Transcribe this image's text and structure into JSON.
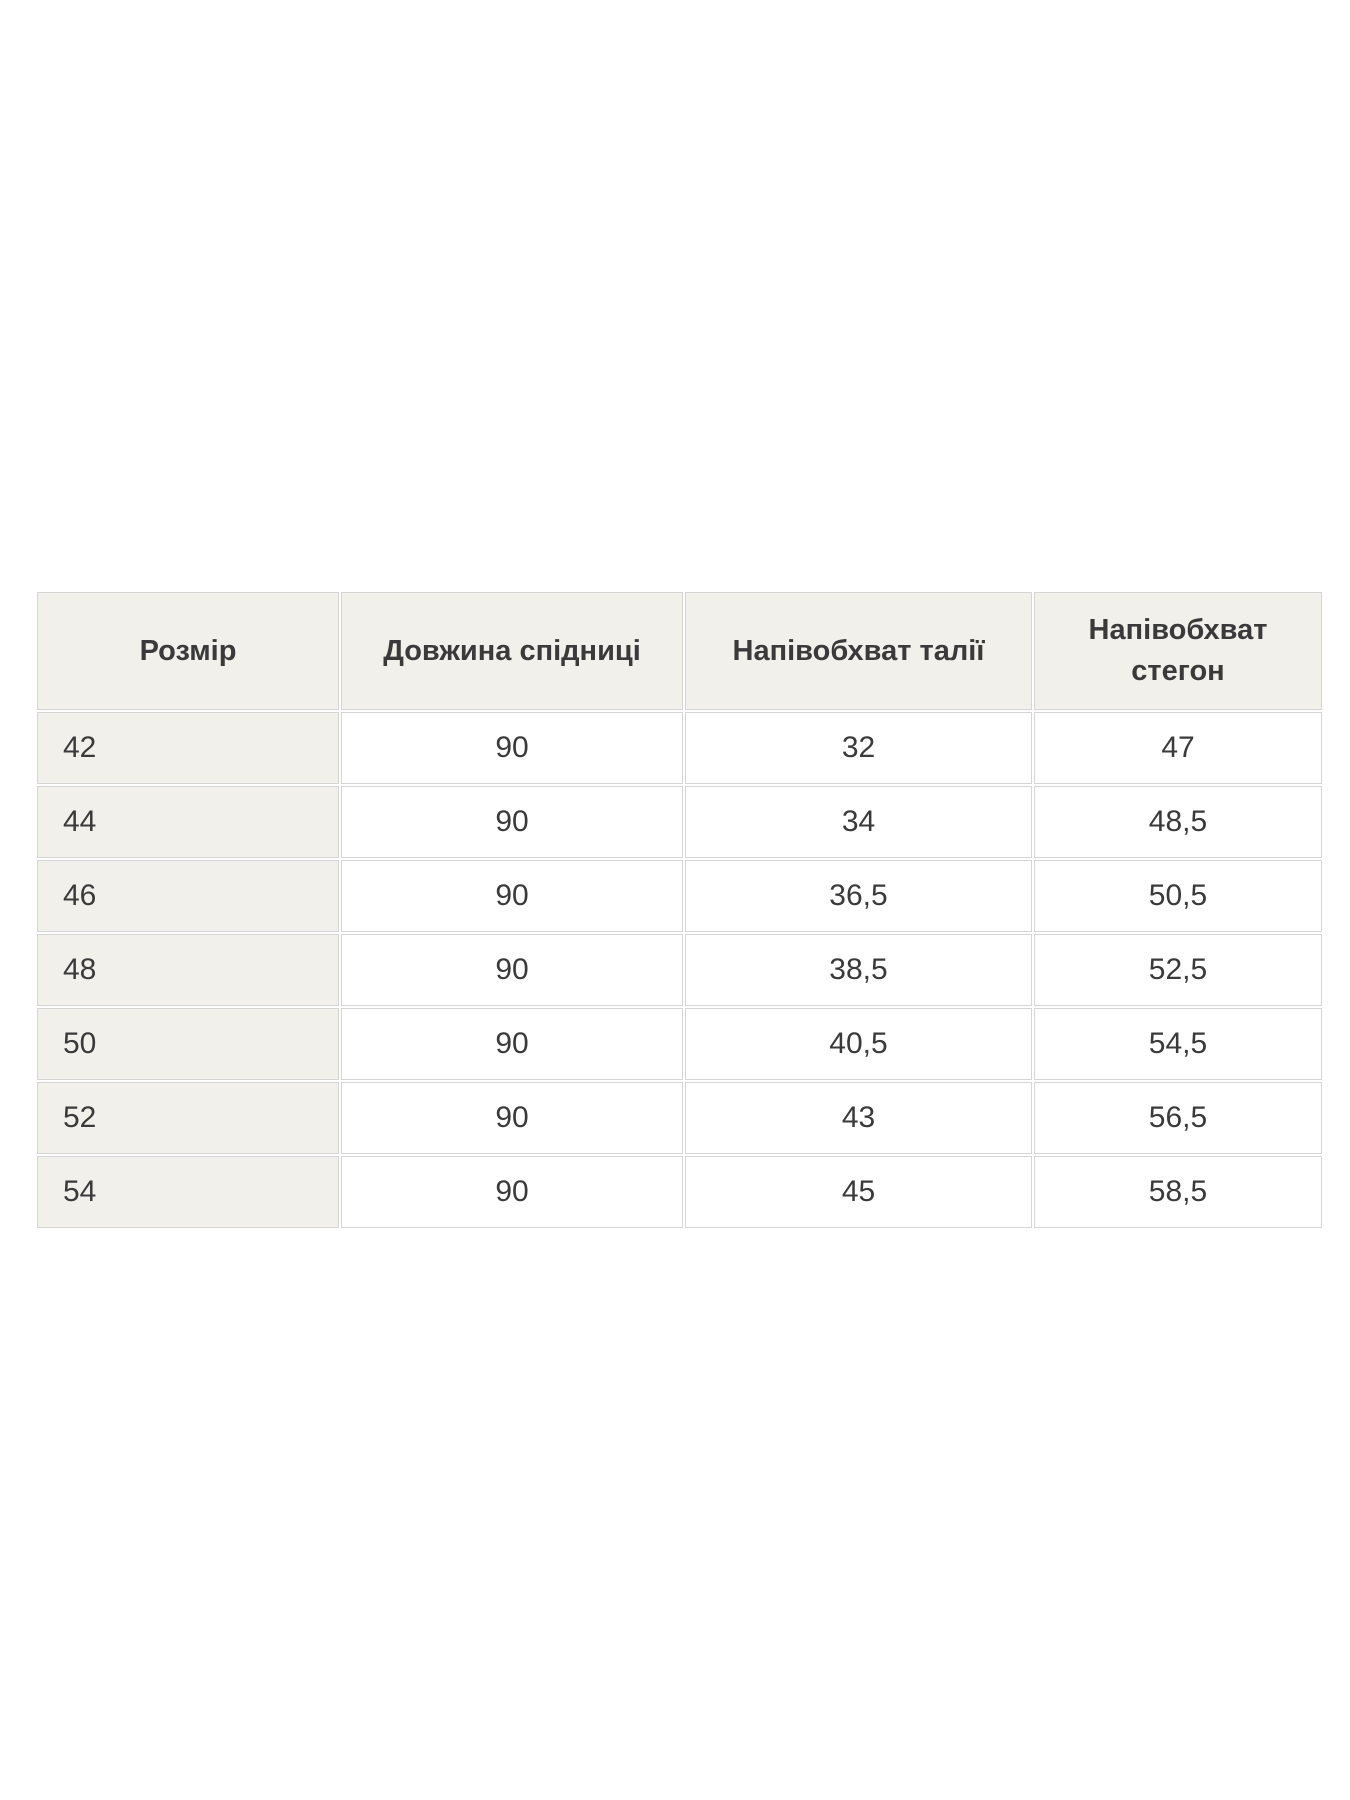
{
  "chart_data": {
    "type": "table",
    "title": "",
    "columns": [
      "Розмір",
      "Довжина спідниці",
      "Напівобхват талії",
      "Напівобхват стегон"
    ],
    "rows": [
      [
        "42",
        "90",
        "32",
        "47"
      ],
      [
        "44",
        "90",
        "34",
        "48,5"
      ],
      [
        "46",
        "90",
        "36,5",
        "50,5"
      ],
      [
        "48",
        "90",
        "38,5",
        "52,5"
      ],
      [
        "50",
        "90",
        "40,5",
        "54,5"
      ],
      [
        "52",
        "90",
        "43",
        "56,5"
      ],
      [
        "54",
        "90",
        "45",
        "58,5"
      ]
    ]
  },
  "colors": {
    "header_bg": "#f2f0ea",
    "row_bg": "#ffffff",
    "border": "#d5d5d5",
    "text": "#3a3a3a",
    "page_bg": "#ffffff"
  }
}
